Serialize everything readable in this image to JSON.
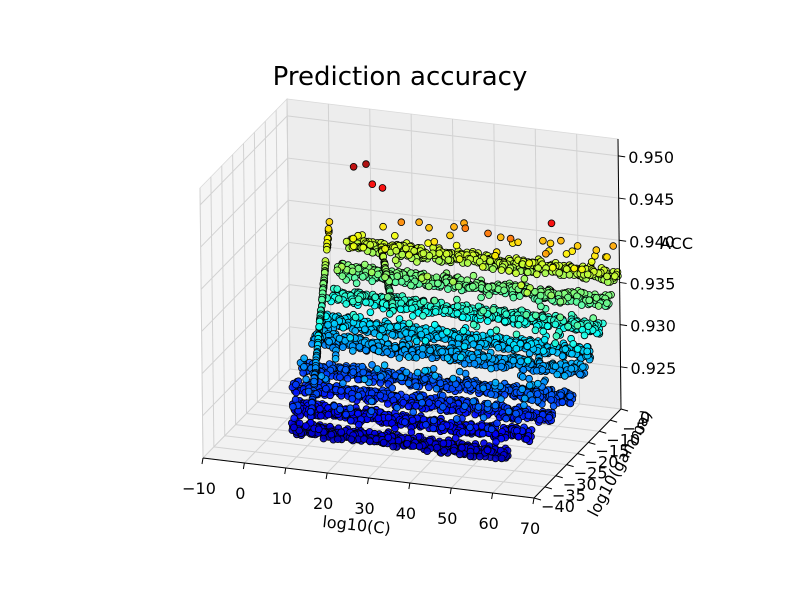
{
  "chart_data": {
    "type": "scatter",
    "title": "Prediction accuracy",
    "xlabel": "log10(C)",
    "ylabel": "log10(gamma)",
    "zlabel": "ACC",
    "xlim": [
      -10,
      70
    ],
    "ylim": [
      -40,
      0
    ],
    "zlim": [
      0.92,
      0.952
    ],
    "x_ticks": [
      -10,
      0,
      10,
      20,
      30,
      40,
      50,
      60,
      70
    ],
    "y_ticks": [
      0,
      -5,
      -10,
      -15,
      -20,
      -25,
      -30,
      -35,
      -40
    ],
    "z_ticks": [
      0.925,
      0.93,
      0.935,
      0.94,
      0.945,
      0.95
    ],
    "x_tick_labels": [
      "−10",
      "0",
      "10",
      "20",
      "30",
      "40",
      "50",
      "60",
      "70"
    ],
    "y_tick_labels": [
      "0",
      "−5",
      "−10",
      "−15",
      "−20",
      "−25",
      "−30",
      "−35",
      "−40"
    ],
    "z_tick_labels": [
      "0.925",
      "0.930",
      "0.935",
      "0.940",
      "0.945",
      "0.950"
    ],
    "colormap": "jet",
    "grid": true,
    "bands": [
      {
        "gamma": -1,
        "acc": 0.936,
        "x_from": 5,
        "x_to": 70
      },
      {
        "gamma": -5,
        "acc": 0.934,
        "x_from": 5,
        "x_to": 70
      },
      {
        "gamma": -9,
        "acc": 0.932,
        "x_from": 5,
        "x_to": 70
      },
      {
        "gamma": -13,
        "acc": 0.93,
        "x_from": 5,
        "x_to": 70
      },
      {
        "gamma": -17,
        "acc": 0.929,
        "x_from": 5,
        "x_to": 70
      },
      {
        "gamma": -22,
        "acc": 0.927,
        "x_from": 5,
        "x_to": 70
      },
      {
        "gamma": -27,
        "acc": 0.926,
        "x_from": 5,
        "x_to": 68
      },
      {
        "gamma": -32,
        "acc": 0.925,
        "x_from": 8,
        "x_to": 65
      },
      {
        "gamma": -37,
        "acc": 0.924,
        "x_from": 10,
        "x_to": 62
      }
    ],
    "outliers": [
      {
        "x": 7,
        "y": -2,
        "z": 0.9455
      },
      {
        "x": 10,
        "y": -2,
        "z": 0.946
      },
      {
        "x": 12,
        "y": -3,
        "z": 0.944
      },
      {
        "x": 15,
        "y": -4,
        "z": 0.944
      },
      {
        "x": 36,
        "y": -6,
        "z": 0.941
      },
      {
        "x": 42,
        "y": -7,
        "z": 0.941
      },
      {
        "x": 48,
        "y": -8,
        "z": 0.941
      },
      {
        "x": 57,
        "y": -9,
        "z": 0.94
      },
      {
        "x": 59,
        "y": -10,
        "z": 0.944
      },
      {
        "x": 20,
        "y": -5,
        "z": 0.9405
      },
      {
        "x": 52,
        "y": -11,
        "z": 0.9365
      },
      {
        "x": 54,
        "y": -12,
        "z": 0.936
      }
    ]
  }
}
